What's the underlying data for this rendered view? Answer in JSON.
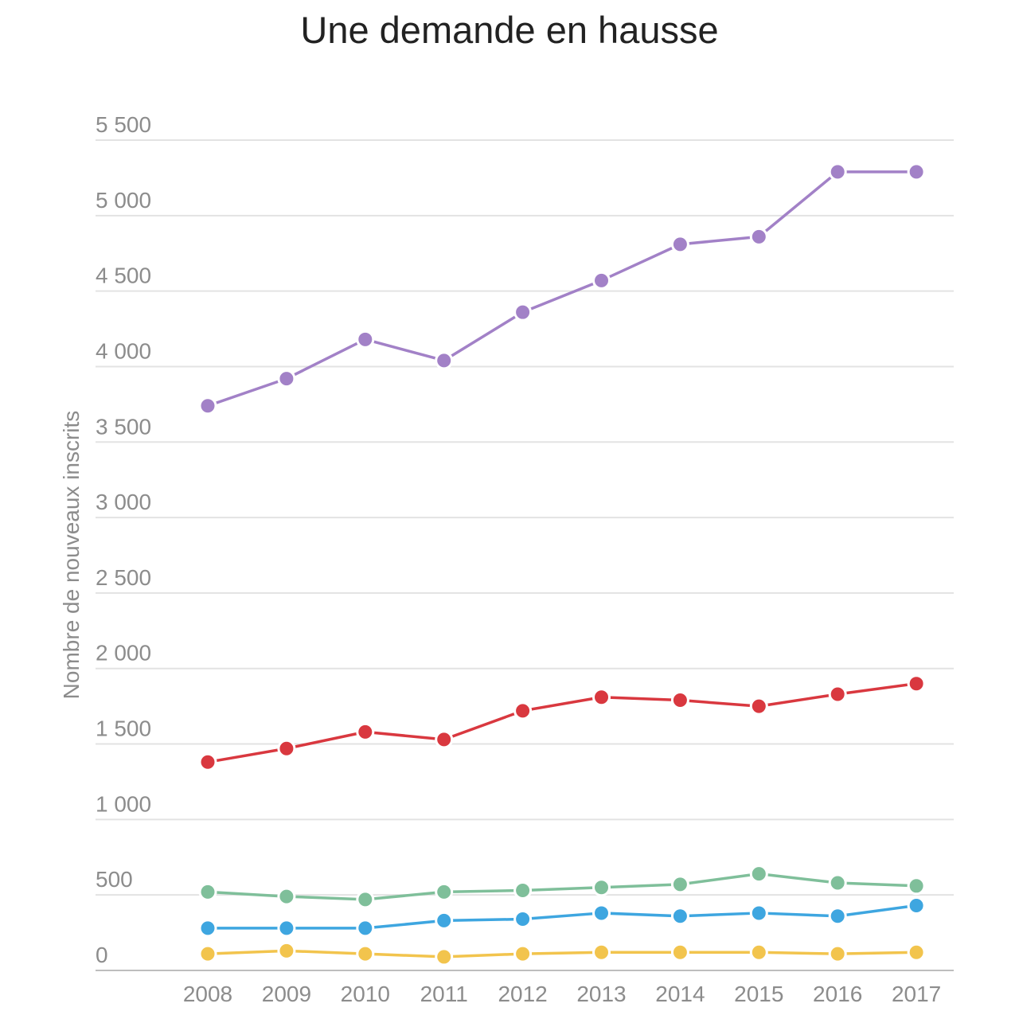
{
  "chart_data": {
    "type": "line",
    "title": "Une demande en hausse",
    "ylabel": "Nombre de nouveaux inscrits",
    "xlabel": "",
    "ylim": [
      0,
      5500
    ],
    "yticks": [
      0,
      500,
      1000,
      1500,
      2000,
      2500,
      3000,
      3500,
      4000,
      4500,
      5000,
      5500
    ],
    "ytick_labels": [
      "0",
      "500",
      "1 000",
      "1 500",
      "2 000",
      "2 500",
      "3 000",
      "3 500",
      "4 000",
      "4 500",
      "5 000",
      "5 500"
    ],
    "categories": [
      "2008",
      "2009",
      "2010",
      "2011",
      "2012",
      "2013",
      "2014",
      "2015",
      "2016",
      "2017"
    ],
    "grid": true,
    "legend": "none",
    "series": [
      {
        "color": "#a281c7",
        "values": [
          3740,
          3920,
          4180,
          4040,
          4360,
          4570,
          4810,
          4860,
          5290,
          5290
        ]
      },
      {
        "color": "#d9383f",
        "values": [
          1380,
          1470,
          1580,
          1530,
          1720,
          1810,
          1790,
          1750,
          1830,
          1900
        ]
      },
      {
        "color": "#7fbf9a",
        "values": [
          520,
          490,
          470,
          520,
          530,
          550,
          570,
          640,
          580,
          560
        ]
      },
      {
        "color": "#3ea6e0",
        "values": [
          280,
          280,
          280,
          330,
          340,
          380,
          360,
          380,
          360,
          430
        ]
      },
      {
        "color": "#f2c44d",
        "values": [
          110,
          130,
          110,
          90,
          110,
          120,
          120,
          120,
          110,
          120
        ]
      }
    ]
  }
}
